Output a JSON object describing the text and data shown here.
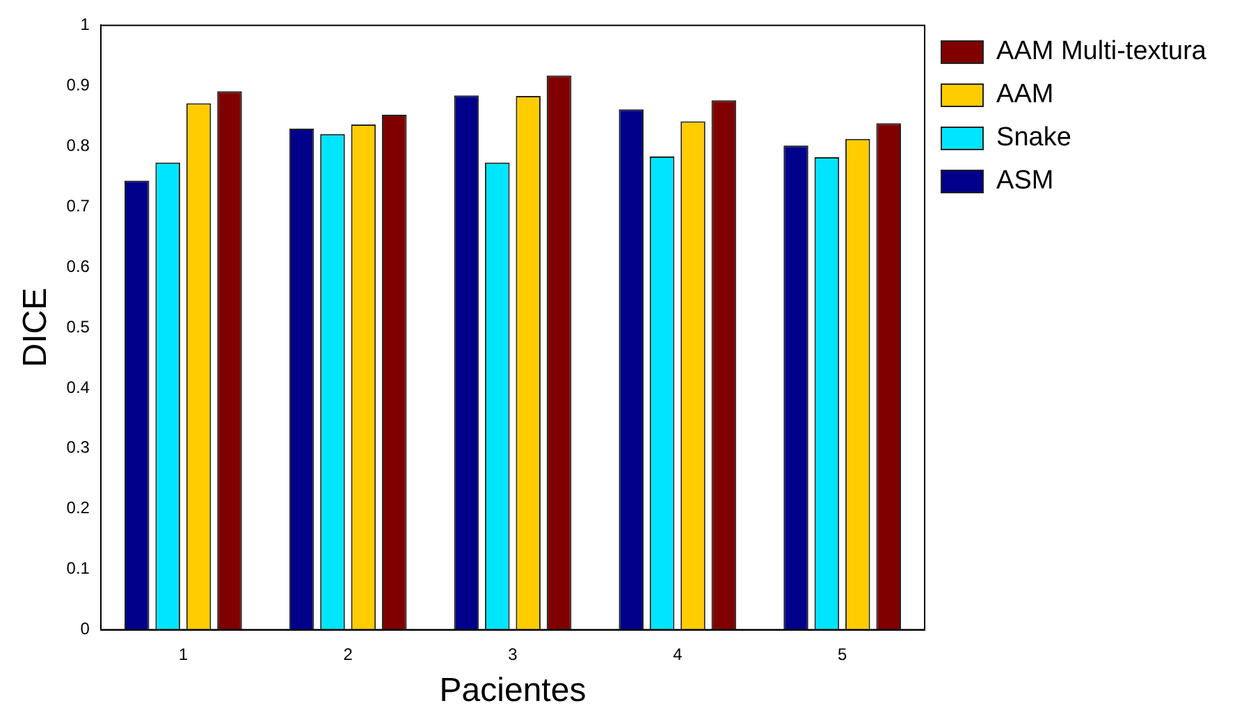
{
  "chart_data": {
    "type": "bar",
    "xlabel": "Pacientes",
    "ylabel": "DICE",
    "categories": [
      "1",
      "2",
      "3",
      "4",
      "5"
    ],
    "series": [
      {
        "name": "ASM",
        "color": "#00008b",
        "values": [
          0.743,
          0.829,
          0.884,
          0.861,
          0.801
        ]
      },
      {
        "name": "Snake",
        "color": "#00e5ff",
        "values": [
          0.773,
          0.82,
          0.773,
          0.783,
          0.782
        ]
      },
      {
        "name": "AAM",
        "color": "#ffcc00",
        "values": [
          0.871,
          0.836,
          0.883,
          0.841,
          0.812
        ]
      },
      {
        "name": "AAM Multi-textura",
        "color": "#800000",
        "values": [
          0.891,
          0.852,
          0.917,
          0.876,
          0.838
        ]
      }
    ],
    "ylim": [
      0,
      1
    ],
    "yticks": [
      0,
      0.1,
      0.2,
      0.3,
      0.4,
      0.5,
      0.6,
      0.7,
      0.8,
      0.9,
      1
    ],
    "grid": false,
    "legend": "top right"
  }
}
